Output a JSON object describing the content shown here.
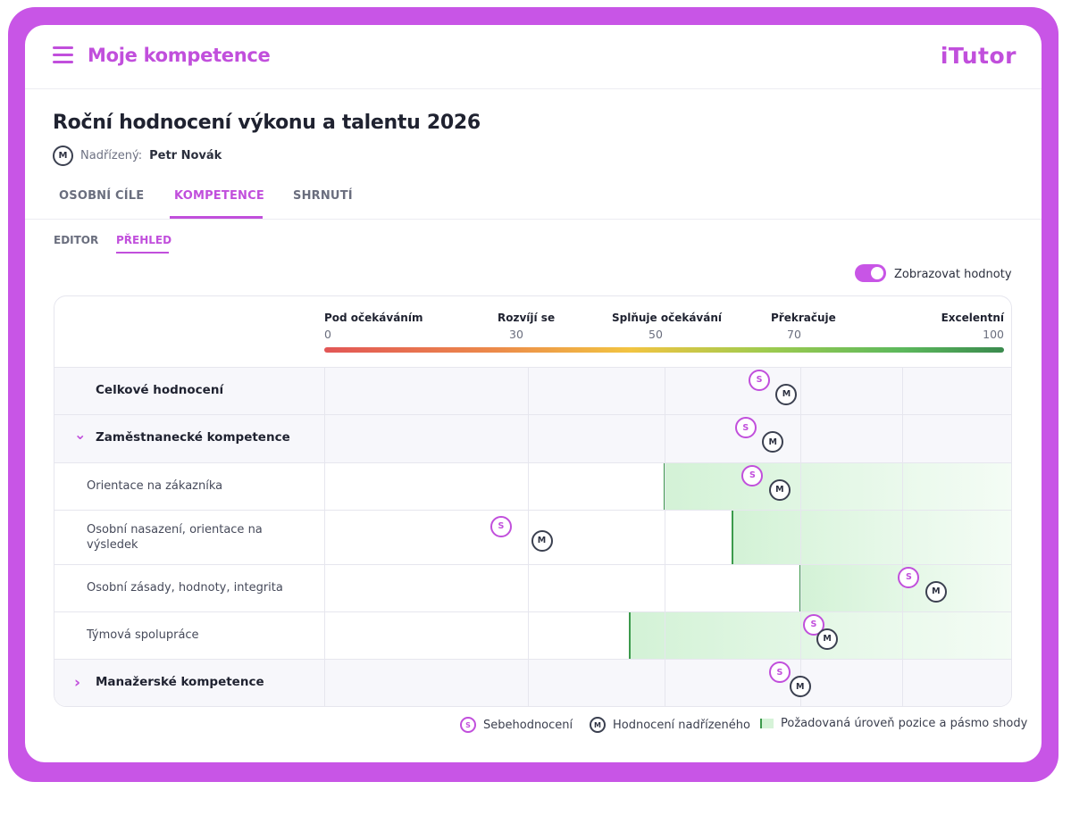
{
  "header": {
    "app_title": "Moje kompetence",
    "brand": "iTutor"
  },
  "page": {
    "title": "Roční hodnocení výkonu a talentu 2026",
    "manager_badge": "M",
    "manager_label": "Nadřízený:",
    "manager_name": "Petr Novák"
  },
  "tabs": [
    {
      "label": "OSOBNÍ CÍLE",
      "active": false
    },
    {
      "label": "KOMPETENCE",
      "active": true
    },
    {
      "label": "SHRNUTÍ",
      "active": false
    }
  ],
  "subtabs": [
    {
      "label": "EDITOR",
      "active": false
    },
    {
      "label": "PŘEHLED",
      "active": true
    }
  ],
  "toggle": {
    "label": "Zobrazovat hodnoty",
    "on": true
  },
  "scale": {
    "min": 0,
    "max": 100,
    "levels": [
      {
        "label": "Pod očekáváním",
        "value": 0
      },
      {
        "label": "Rozvíjí se",
        "value": 30
      },
      {
        "label": "Splňuje očekávání",
        "value": 50
      },
      {
        "label": "Překračuje",
        "value": 70
      },
      {
        "label": "Excelentní",
        "value": 100
      }
    ]
  },
  "rows": [
    {
      "label": "Celkové hodnocení",
      "type": "total",
      "self": 64,
      "manager": 68
    },
    {
      "label": "Zaměstnanecké kompetence",
      "type": "group",
      "expanded": true,
      "self": 62,
      "manager": 66
    },
    {
      "label": "Orientace na zákazníka",
      "type": "item",
      "required": 50,
      "self": 63,
      "manager": 67
    },
    {
      "label": "Osobní nasazení, orientace na výsledek",
      "type": "item",
      "required": 60,
      "self": 26,
      "manager": 32
    },
    {
      "label": "Osobní zásady, hodnoty, integrita",
      "type": "item",
      "required": 70,
      "self": 86,
      "manager": 90
    },
    {
      "label": "Týmová spolupráce",
      "type": "item",
      "required": 45,
      "self": 72,
      "manager": 74
    },
    {
      "label": "Manažerské kompetence",
      "type": "group",
      "expanded": false,
      "self": 67,
      "manager": 70
    }
  ],
  "marker_labels": {
    "self": "S",
    "manager": "M"
  },
  "legend": {
    "self": "Sebehodnocení",
    "manager": "Hodnocení nadřízeného",
    "band": "Požadovaná úroveň pozice a pásmo shody"
  },
  "colors": {
    "accent": "#c855e6",
    "self_marker": "#c14fdc",
    "manager_marker": "#3b4050",
    "band_fill": "#d6f3d8",
    "band_edge": "#3c9a4c"
  }
}
